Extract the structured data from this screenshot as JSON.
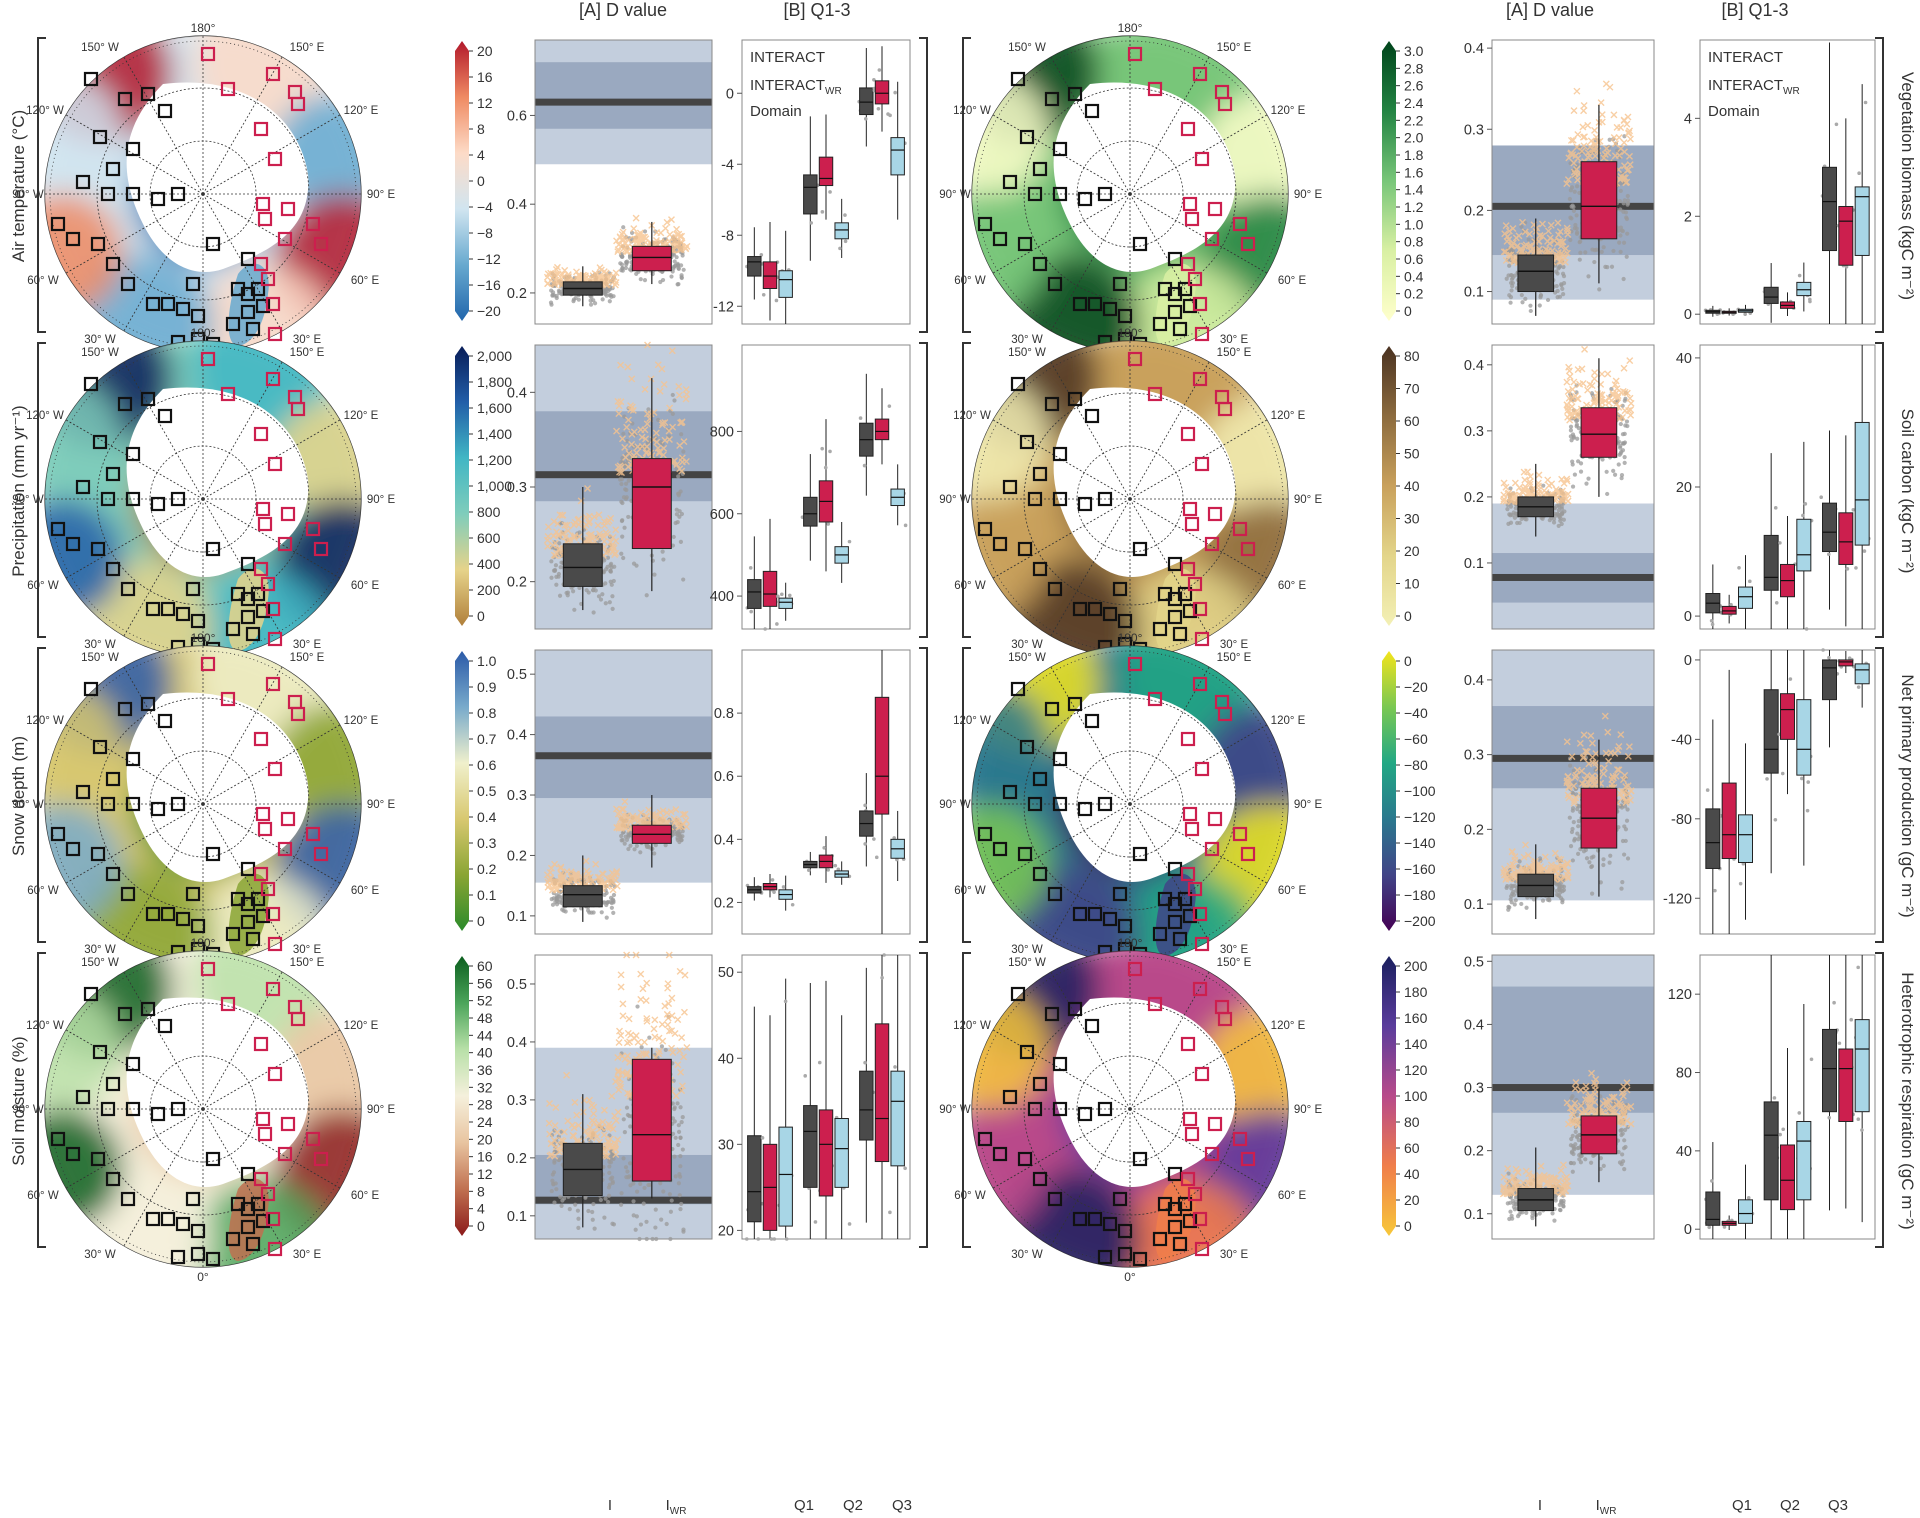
{
  "header": {
    "dvalue": "[A] D value",
    "q13": "[B] Q1-3"
  },
  "legend": {
    "interact": "INTERACT",
    "interact_wr_base": "INTERACT",
    "interact_wr_sub": "WR",
    "domain": "Domain",
    "colors": {
      "interact": "#4a4a4a",
      "interact_wr": "#cc1f4e",
      "domain": "#a8d6e6",
      "wr_scatter": "#f7c48f",
      "band_outer": "#c3cedd",
      "band_inner": "#9aa9c0"
    }
  },
  "map_labels": {
    "top": "180°",
    "bottom": "0°",
    "w150": "150° W",
    "e150": "150° E",
    "w120": "120° W",
    "e120": "120° E",
    "w90": "90° W",
    "e90": "90° E",
    "w60": "60° W",
    "e60": "60° E",
    "w30": "30° W",
    "e30": "30° E"
  },
  "bottom_axis": {
    "dvalue_ticks": [
      "I",
      "I"
    ],
    "dvalue_wr_sub": "WR",
    "q_ticks": [
      "Q1",
      "Q2",
      "Q3"
    ]
  },
  "chart_data": [
    {
      "type": "box",
      "variable": "Air temperature (°C)",
      "panel": "D value",
      "yticks": [
        0.2,
        0.4,
        0.6
      ],
      "ylim": [
        0.13,
        0.77
      ],
      "bands": {
        "outer": [
          0.49,
          0.77
        ],
        "inner": [
          0.57,
          0.72
        ]
      },
      "domain_line": 0.63,
      "I": {
        "q1": 0.195,
        "median": 0.21,
        "q3": 0.225,
        "whisker": [
          0.17,
          0.26
        ]
      },
      "IWR": {
        "q1": 0.25,
        "median": 0.28,
        "q3": 0.305,
        "whisker": [
          0.22,
          0.36
        ]
      }
    },
    {
      "type": "box",
      "variable": "Air temperature (°C)",
      "panel": "Q1-3",
      "yticks": [
        -12,
        -8,
        -4,
        0
      ],
      "ylim": [
        -13,
        3
      ],
      "boxes": [
        {
          "I": [
            -10.3,
            -9.5,
            -9.2
          ],
          "IWR": [
            -11.0,
            -10.3,
            -9.5
          ],
          "Domain": [
            -11.5,
            -10.5,
            -10.0
          ]
        },
        {
          "I": [
            -6.8,
            -5.3,
            -4.6
          ],
          "IWR": [
            -5.2,
            -4.8,
            -3.6
          ],
          "Domain": [
            -8.2,
            -7.7,
            -7.3
          ]
        },
        {
          "I": [
            -1.2,
            -0.5,
            0.3
          ],
          "IWR": [
            -0.6,
            0,
            0.7
          ],
          "Domain": [
            -4.6,
            -3.2,
            -2.5
          ]
        }
      ]
    },
    {
      "type": "box",
      "variable": "Vegetation biomass (kgC m⁻²)",
      "panel": "D value",
      "yticks": [
        0.1,
        0.2,
        0.3,
        0.4
      ],
      "ylim": [
        0.06,
        0.41
      ],
      "bands": {
        "outer": [
          0.09,
          0.28
        ],
        "inner": [
          0.145,
          0.28
        ]
      },
      "domain_line": 0.205,
      "I": {
        "q1": 0.1,
        "median": 0.125,
        "q3": 0.145,
        "whisker": [
          0.07,
          0.19
        ]
      },
      "IWR": {
        "q1": 0.165,
        "median": 0.205,
        "q3": 0.26,
        "whisker": [
          0.11,
          0.33
        ]
      }
    },
    {
      "type": "box",
      "variable": "Vegetation biomass (kgC m⁻²)",
      "panel": "Q1-3",
      "yticks": [
        0,
        2,
        4
      ],
      "ylim": [
        -0.2,
        5.6
      ],
      "boxes": [
        {
          "I": [
            0.02,
            0.05,
            0.08
          ],
          "IWR": [
            0.02,
            0.04,
            0.06
          ],
          "Domain": [
            0.04,
            0.07,
            0.1
          ]
        },
        {
          "I": [
            0.22,
            0.35,
            0.55
          ],
          "IWR": [
            0.12,
            0.18,
            0.25
          ],
          "Domain": [
            0.38,
            0.5,
            0.65
          ]
        },
        {
          "I": [
            1.3,
            2.3,
            3.0
          ],
          "IWR": [
            1.0,
            1.9,
            2.2
          ],
          "Domain": [
            1.2,
            2.4,
            2.6
          ]
        }
      ]
    },
    {
      "type": "box",
      "variable": "Precipitation (mm yr⁻¹)",
      "panel": "D value",
      "yticks": [
        0.2,
        0.3,
        0.4
      ],
      "ylim": [
        0.15,
        0.45
      ],
      "bands": {
        "outer": [
          0.15,
          0.45
        ],
        "inner": [
          0.285,
          0.38
        ]
      },
      "domain_line": 0.313,
      "I": {
        "q1": 0.195,
        "median": 0.215,
        "q3": 0.24,
        "whisker": [
          0.17,
          0.3
        ]
      },
      "IWR": {
        "q1": 0.235,
        "median": 0.3,
        "q3": 0.33,
        "whisker": [
          0.19,
          0.415
        ]
      }
    },
    {
      "type": "box",
      "variable": "Precipitation (mm yr⁻¹)",
      "panel": "Q1-3",
      "yticks": [
        400,
        600,
        800
      ],
      "ylim": [
        320,
        1010
      ],
      "boxes": [
        {
          "I": [
            370,
            410,
            440
          ],
          "IWR": [
            375,
            405,
            460
          ],
          "Domain": [
            370,
            385,
            395
          ]
        },
        {
          "I": [
            570,
            600,
            640
          ],
          "IWR": [
            580,
            630,
            680
          ],
          "Domain": [
            480,
            500,
            520
          ]
        },
        {
          "I": [
            740,
            780,
            820
          ],
          "IWR": [
            780,
            800,
            830
          ],
          "Domain": [
            620,
            640,
            660
          ]
        }
      ]
    },
    {
      "type": "box",
      "variable": "Soil carbon (kgC m⁻²)",
      "panel": "D value",
      "yticks": [
        0.1,
        0.2,
        0.3,
        0.4
      ],
      "ylim": [
        0.0,
        0.43
      ],
      "bands": {
        "outer": [
          0.0,
          0.19
        ],
        "inner": [
          0.04,
          0.115
        ]
      },
      "domain_line": 0.078,
      "I": {
        "q1": 0.17,
        "median": 0.185,
        "q3": 0.2,
        "whisker": [
          0.14,
          0.25
        ]
      },
      "IWR": {
        "q1": 0.26,
        "median": 0.295,
        "q3": 0.335,
        "whisker": [
          0.2,
          0.41
        ]
      }
    },
    {
      "type": "box",
      "variable": "Soil carbon (kgC m⁻²)",
      "panel": "Q1-3",
      "yticks": [
        0,
        20,
        40
      ],
      "ylim": [
        -2,
        42
      ],
      "boxes": [
        {
          "I": [
            0.5,
            2.0,
            3.5
          ],
          "IWR": [
            0.3,
            0.8,
            1.5
          ],
          "Domain": [
            1.2,
            3.0,
            4.5
          ]
        },
        {
          "I": [
            4.0,
            6.0,
            12.5
          ],
          "IWR": [
            3.0,
            5.5,
            8.0
          ],
          "Domain": [
            7.0,
            9.5,
            15.0
          ]
        },
        {
          "I": [
            10.0,
            13.0,
            17.5
          ],
          "IWR": [
            8.0,
            11.5,
            16.0
          ],
          "Domain": [
            11.0,
            18.0,
            30.0
          ]
        }
      ]
    },
    {
      "type": "box",
      "variable": "Snow depth (m)",
      "panel": "D value",
      "yticks": [
        0.1,
        0.2,
        0.3,
        0.4,
        0.5
      ],
      "ylim": [
        0.07,
        0.54
      ],
      "bands": {
        "outer": [
          0.155,
          0.54
        ],
        "inner": [
          0.295,
          0.43
        ]
      },
      "domain_line": 0.365,
      "I": {
        "q1": 0.115,
        "median": 0.135,
        "q3": 0.15,
        "whisker": [
          0.09,
          0.2
        ]
      },
      "IWR": {
        "q1": 0.22,
        "median": 0.235,
        "q3": 0.25,
        "whisker": [
          0.18,
          0.3
        ]
      }
    },
    {
      "type": "box",
      "variable": "Snow depth (m)",
      "panel": "Q1-3",
      "yticks": [
        0.2,
        0.4,
        0.6,
        0.8
      ],
      "ylim": [
        0.1,
        1.0
      ],
      "boxes": [
        {
          "I": [
            0.23,
            0.24,
            0.25
          ],
          "IWR": [
            0.24,
            0.25,
            0.26
          ],
          "Domain": [
            0.21,
            0.225,
            0.24
          ]
        },
        {
          "I": [
            0.31,
            0.32,
            0.33
          ],
          "IWR": [
            0.31,
            0.33,
            0.35
          ],
          "Domain": [
            0.28,
            0.29,
            0.3
          ]
        },
        {
          "I": [
            0.41,
            0.45,
            0.49
          ],
          "IWR": [
            0.48,
            0.6,
            0.85
          ],
          "Domain": [
            0.34,
            0.37,
            0.4
          ]
        }
      ]
    },
    {
      "type": "box",
      "variable": "Net primary production (gC m⁻²)",
      "panel": "D value",
      "yticks": [
        0.1,
        0.2,
        0.3,
        0.4
      ],
      "ylim": [
        0.06,
        0.44
      ],
      "bands": {
        "outer": [
          0.105,
          0.44
        ],
        "inner": [
          0.255,
          0.365
        ]
      },
      "domain_line": 0.295,
      "I": {
        "q1": 0.11,
        "median": 0.125,
        "q3": 0.14,
        "whisker": [
          0.08,
          0.18
        ]
      },
      "IWR": {
        "q1": 0.175,
        "median": 0.215,
        "q3": 0.255,
        "whisker": [
          0.11,
          0.32
        ]
      }
    },
    {
      "type": "box",
      "variable": "Net primary production (gC m⁻²)",
      "panel": "Q1-3",
      "yticks": [
        -120,
        -80,
        -40,
        0
      ],
      "ylim": [
        -138,
        5
      ],
      "boxes": [
        {
          "I": [
            -105,
            -92,
            -75
          ],
          "IWR": [
            -100,
            -88,
            -62
          ],
          "Domain": [
            -102,
            -88,
            -78
          ]
        },
        {
          "I": [
            -57,
            -45,
            -15
          ],
          "IWR": [
            -40,
            -25,
            -17
          ],
          "Domain": [
            -58,
            -45,
            -20
          ]
        },
        {
          "I": [
            -20,
            -4,
            0
          ],
          "IWR": [
            -3,
            -1,
            0
          ],
          "Domain": [
            -12,
            -5,
            -2
          ]
        }
      ]
    },
    {
      "type": "box",
      "variable": "Soil moisture (%)",
      "panel": "D value",
      "yticks": [
        0.1,
        0.2,
        0.3,
        0.4,
        0.5
      ],
      "ylim": [
        0.06,
        0.55
      ],
      "bands": {
        "outer": [
          0.06,
          0.39
        ],
        "inner": [
          0.12,
          0.205
        ]
      },
      "domain_line": 0.127,
      "I": {
        "q1": 0.135,
        "median": 0.18,
        "q3": 0.225,
        "whisker": [
          0.08,
          0.31
        ]
      },
      "IWR": {
        "q1": 0.16,
        "median": 0.24,
        "q3": 0.37,
        "whisker": [
          0.13,
          0.39
        ]
      }
    },
    {
      "type": "box",
      "variable": "Soil moisture (%)",
      "panel": "Q1-3",
      "yticks": [
        20,
        30,
        40,
        50
      ],
      "ylim": [
        19,
        52
      ],
      "boxes": [
        {
          "I": [
            21,
            24.5,
            31
          ],
          "IWR": [
            20,
            25,
            30
          ],
          "Domain": [
            20.5,
            26.5,
            32
          ]
        },
        {
          "I": [
            25,
            31.5,
            34.5
          ],
          "IWR": [
            24,
            30,
            34
          ],
          "Domain": [
            25,
            29.5,
            33
          ]
        },
        {
          "I": [
            30.5,
            34,
            38.5
          ],
          "IWR": [
            28,
            33,
            44
          ],
          "Domain": [
            27.5,
            35,
            38.5
          ]
        }
      ]
    },
    {
      "type": "box",
      "variable": "Heterotrophic respiration (gC m⁻²)",
      "panel": "D value",
      "yticks": [
        0.1,
        0.2,
        0.3,
        0.4,
        0.5
      ],
      "ylim": [
        0.06,
        0.51
      ],
      "bands": {
        "outer": [
          0.13,
          0.51
        ],
        "inner": [
          0.26,
          0.46
        ]
      },
      "domain_line": 0.3,
      "I": {
        "q1": 0.105,
        "median": 0.122,
        "q3": 0.14,
        "whisker": [
          0.08,
          0.205
        ]
      },
      "IWR": {
        "q1": 0.195,
        "median": 0.225,
        "q3": 0.255,
        "whisker": [
          0.15,
          0.3
        ]
      }
    },
    {
      "type": "box",
      "variable": "Heterotrophic respiration (gC m⁻²)",
      "panel": "Q1-3",
      "yticks": [
        0,
        40,
        80,
        120
      ],
      "ylim": [
        -5,
        140
      ],
      "boxes": [
        {
          "I": [
            2,
            5,
            19
          ],
          "IWR": [
            2,
            3,
            4
          ],
          "Domain": [
            3,
            8,
            15
          ]
        },
        {
          "I": [
            15,
            48,
            65
          ],
          "IWR": [
            10,
            25,
            43
          ],
          "Domain": [
            15,
            45,
            55
          ]
        },
        {
          "I": [
            60,
            82,
            102
          ],
          "IWR": [
            55,
            82,
            92
          ],
          "Domain": [
            60,
            92,
            107
          ]
        }
      ]
    }
  ],
  "maps": [
    {
      "variable": "Air temperature (°C)",
      "ticks": [
        "20",
        "16",
        "12",
        "8",
        "4",
        "0",
        "−4",
        "−8",
        "−12",
        "−16",
        "−20"
      ],
      "colors": [
        "#b2182b",
        "#ef8a62",
        "#fddbc7",
        "#d1e5f0",
        "#67a9cf",
        "#2166ac"
      ],
      "map_style": "temp"
    },
    {
      "variable": "Vegetation biomass (kgC m⁻²)",
      "ticks": [
        "3.0",
        "2.8",
        "2.6",
        "2.4",
        "2.2",
        "2.0",
        "1.8",
        "1.6",
        "1.4",
        "1.2",
        "1.0",
        "0.8",
        "0.6",
        "0.4",
        "0.2",
        "0"
      ],
      "colors": [
        "#00441b",
        "#238443",
        "#78c679",
        "#d9f0a3",
        "#ffffcc"
      ],
      "map_style": "veg"
    },
    {
      "variable": "Precipitation (mm yr⁻¹)",
      "ticks": [
        "2,000",
        "1,800",
        "1,600",
        "1,400",
        "1,200",
        "1,000",
        "800",
        "600",
        "400",
        "200",
        "0"
      ],
      "colors": [
        "#081d58",
        "#225ea8",
        "#41b6c4",
        "#7fcdbb",
        "#e6d38a",
        "#b07f3a"
      ],
      "map_style": "precip"
    },
    {
      "variable": "Soil carbon (kgC m⁻²)",
      "ticks": [
        "80",
        "70",
        "60",
        "50",
        "40",
        "30",
        "20",
        "10",
        "0"
      ],
      "colors": [
        "#4a3221",
        "#8c6b3e",
        "#c9a15c",
        "#e3d58a",
        "#f3f0b5"
      ],
      "map_style": "soilc"
    },
    {
      "variable": "Snow depth (m)",
      "ticks": [
        "1.0",
        "0.9",
        "0.8",
        "0.7",
        "0.6",
        "0.5",
        "0.4",
        "0.3",
        "0.2",
        "0.1",
        "0"
      ],
      "colors": [
        "#2b5aa8",
        "#78aacb",
        "#f0f0cc",
        "#d8c870",
        "#8aa534",
        "#2a8a2a"
      ],
      "map_style": "snow"
    },
    {
      "variable": "Net primary production (gC m⁻²)",
      "ticks": [
        "0",
        "−20",
        "−40",
        "−60",
        "−80",
        "−100",
        "−120",
        "−140",
        "−160",
        "−180",
        "−200"
      ],
      "colors": [
        "#f3e41c",
        "#7ac852",
        "#22a884",
        "#2a788e",
        "#414487",
        "#440154"
      ],
      "map_style": "npp"
    },
    {
      "variable": "Soil moisture (%)",
      "ticks": [
        "60",
        "56",
        "52",
        "48",
        "44",
        "40",
        "36",
        "32",
        "28",
        "24",
        "20",
        "16",
        "12",
        "8",
        "4",
        "0"
      ],
      "colors": [
        "#0b5e1e",
        "#4ba45a",
        "#b8e0a8",
        "#f5f0dc",
        "#e8c4a0",
        "#c07050",
        "#8b1a1a"
      ],
      "map_style": "sm"
    },
    {
      "variable": "Heterotrophic respiration (gC m⁻²)",
      "ticks": [
        "200",
        "180",
        "160",
        "140",
        "120",
        "100",
        "80",
        "60",
        "40",
        "20",
        "0"
      ],
      "colors": [
        "#1a1f5e",
        "#5a3c9c",
        "#b84a8a",
        "#f07e4a",
        "#f7c83a"
      ],
      "map_style": "rh"
    }
  ]
}
